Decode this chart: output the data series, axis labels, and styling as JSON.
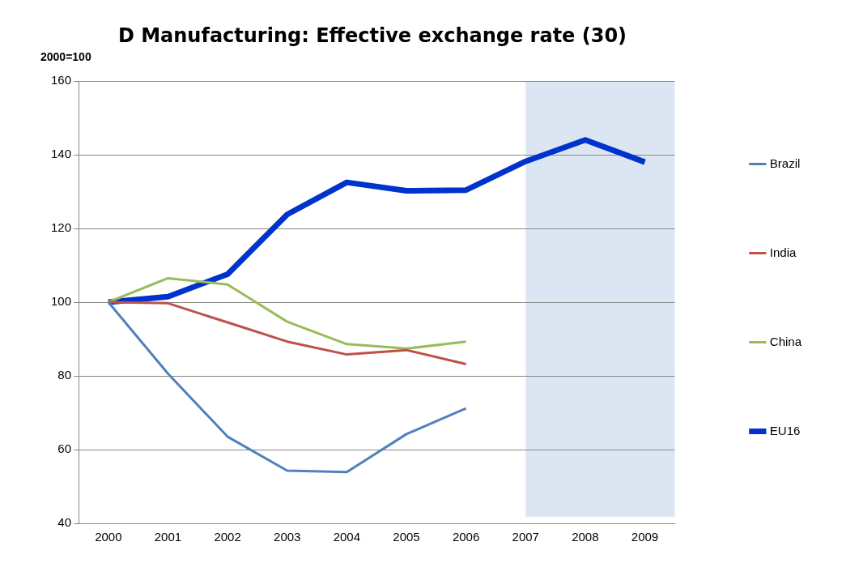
{
  "chart_data": {
    "type": "line",
    "title": "D  Manufacturing: Effective exchange rate (30)",
    "ylabel": "2000=100",
    "categories": [
      "2000",
      "2001",
      "2002",
      "2003",
      "2004",
      "2005",
      "2006",
      "2007",
      "2008",
      "2009"
    ],
    "series": [
      {
        "name": "Brazil",
        "color": "#4f81bd",
        "values": [
          100,
          80.6,
          63.5,
          54.3,
          53.9,
          64.2,
          71.2,
          null,
          null,
          null
        ]
      },
      {
        "name": "India",
        "color": "#c0504d",
        "values": [
          100,
          99.7,
          94.5,
          89.3,
          85.8,
          87,
          83.2,
          null,
          null,
          null
        ]
      },
      {
        "name": "China",
        "color": "#9bbb59",
        "values": [
          100,
          106.5,
          104.8,
          94.7,
          88.6,
          87.4,
          89.3,
          null,
          null,
          null
        ]
      },
      {
        "name": "EU16",
        "color": "#0033cc",
        "values": [
          100,
          101.5,
          107.6,
          123.8,
          132.5,
          130.2,
          130.4,
          138.2,
          144,
          138
        ]
      }
    ],
    "ylim": [
      40,
      160
    ],
    "yticks": [
      40,
      60,
      80,
      100,
      120,
      140,
      160
    ],
    "grid": "y",
    "legend": "right",
    "marker": "none",
    "line_style": "solid",
    "bands": [
      {
        "axis": "x",
        "from": "2007",
        "to": "2009",
        "color": "#dce6f2"
      }
    ]
  }
}
